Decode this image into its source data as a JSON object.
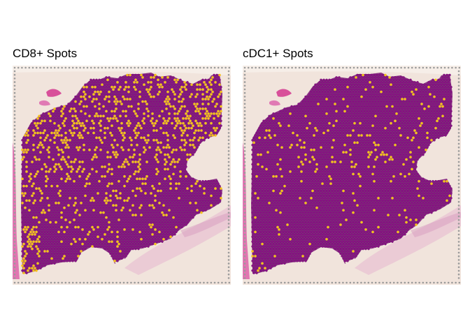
{
  "panels": [
    {
      "title": "CD8+ Spots",
      "highlight_density": 0.19
    },
    {
      "title": "cDC1+ Spots",
      "highlight_density": 0.055
    }
  ],
  "colors": {
    "background_tissue": "#f1e4dc",
    "slide_left_stain": "#dd5aa8",
    "fiducial_spot": "#9a9a9a",
    "spot_base": "#8b0f87",
    "spot_highlight": "#f6c21b",
    "spot_outline": "#5b0f58"
  }
}
